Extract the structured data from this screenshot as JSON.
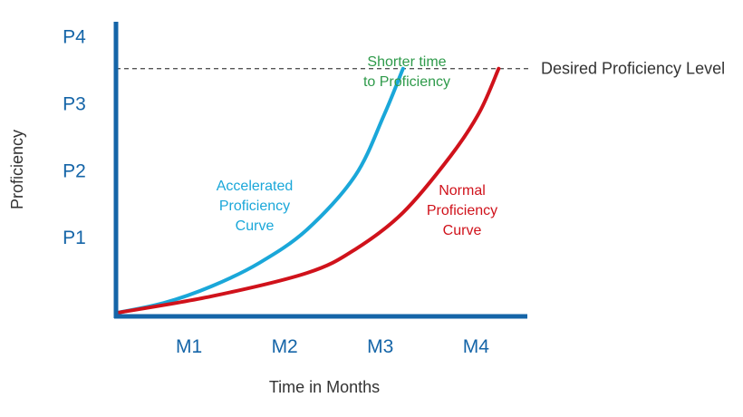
{
  "chart_data": {
    "type": "line",
    "x_label": "Time in Months",
    "y_label": "Proficiency",
    "x_ticks": [
      "M1",
      "M2",
      "M3",
      "M4"
    ],
    "y_ticks": [
      "P1",
      "P2",
      "P3",
      "P4"
    ],
    "xlim": [
      0,
      4.3
    ],
    "ylim": [
      0,
      4.4
    ],
    "grid": false,
    "reference_line": {
      "label": "Desired Proficiency Level",
      "y": 3.7
    },
    "series": [
      {
        "name": "Accelerated Proficiency Curve",
        "label_lines": [
          "Accelerated",
          "Proficiency",
          "Curve"
        ],
        "color": "#1aa7d9",
        "points": [
          [
            0,
            0.05
          ],
          [
            0.5,
            0.2
          ],
          [
            1.0,
            0.45
          ],
          [
            1.5,
            0.8
          ],
          [
            2.0,
            1.3
          ],
          [
            2.5,
            2.1
          ],
          [
            2.8,
            3.0
          ],
          [
            3.0,
            3.7
          ]
        ]
      },
      {
        "name": "Normal Proficiency Curve",
        "label_lines": [
          "Normal",
          "Proficiency",
          "Curve"
        ],
        "color": "#d0121b",
        "points": [
          [
            0,
            0.05
          ],
          [
            1.0,
            0.3
          ],
          [
            2.0,
            0.65
          ],
          [
            2.5,
            1.0
          ],
          [
            3.0,
            1.55
          ],
          [
            3.5,
            2.4
          ],
          [
            3.8,
            3.05
          ],
          [
            4.0,
            3.7
          ]
        ]
      }
    ],
    "annotation": {
      "lines": [
        "Shorter time",
        "to Proficiency"
      ],
      "color": "#2e9a4a"
    },
    "colors": {
      "axis": "#1565a8",
      "tick_text": "#1565a8",
      "axis_title": "#333333",
      "reference_line": "#555555"
    }
  }
}
